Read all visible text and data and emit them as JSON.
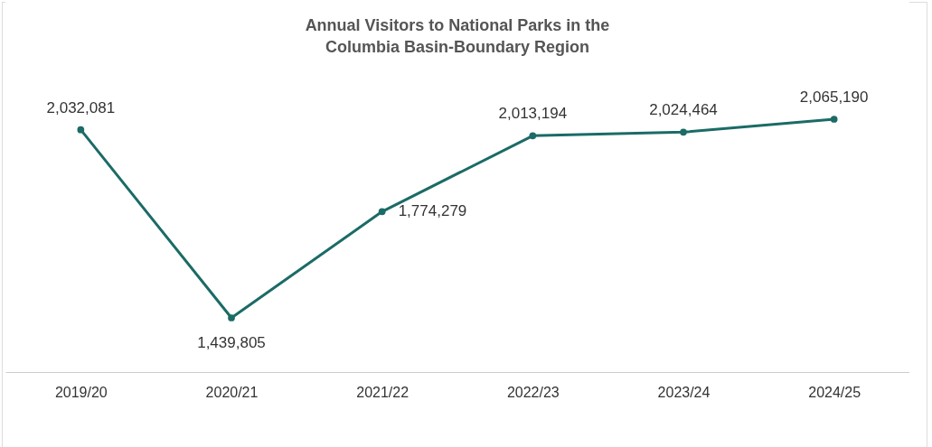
{
  "chart_data": {
    "type": "line",
    "title": "Annual Visitors to National Parks in the Columbia Basin-Boundary Region",
    "categories": [
      "2019/20",
      "2020/21",
      "2021/22",
      "2022/23",
      "2023/24",
      "2024/25"
    ],
    "series": [
      {
        "color": "#1b6b66",
        "values": [
          2032081,
          1439805,
          1774279,
          2013194,
          2024464,
          2065190
        ],
        "value_labels": [
          "2,032,081",
          "1,439,805",
          "1,774,279",
          "2,013,194",
          "2,024,464",
          "2,065,190"
        ]
      }
    ],
    "marker": "circle",
    "grid": false,
    "legend": false
  }
}
